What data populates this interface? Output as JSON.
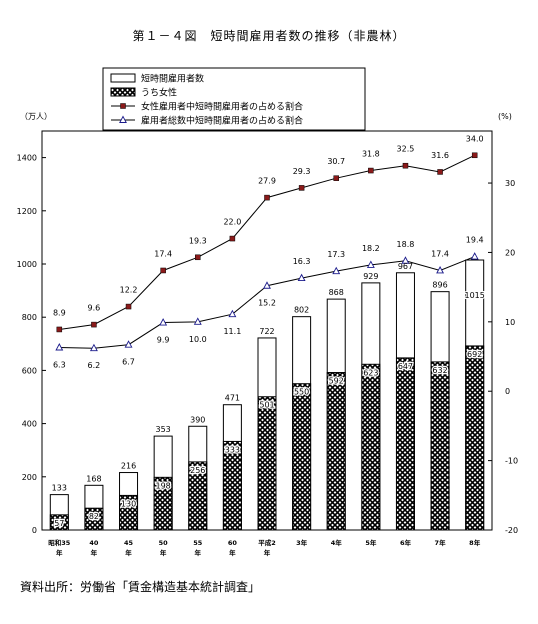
{
  "title": "第１－４図　短時間雇用者数の推移（非農林）",
  "source": "資料出所：労働省「賃金構造基本統計調査」",
  "chart_data": {
    "type": "bar",
    "categories": [
      "昭和35年",
      "40年",
      "45年",
      "50年",
      "55年",
      "60年",
      "平成2年",
      "3年",
      "4年",
      "5年",
      "6年",
      "7年",
      "8年"
    ],
    "left_axis": {
      "unit": "（万人）",
      "ylim": [
        0,
        1500
      ],
      "ticks": [
        0,
        200,
        400,
        600,
        800,
        1000,
        1200,
        1400
      ]
    },
    "right_axis": {
      "unit": "(%)",
      "ylim": [
        -20,
        37.5
      ],
      "ticks": [
        -20,
        -10,
        0,
        10,
        20,
        30
      ]
    },
    "series": [
      {
        "name": "短時間雇用者数",
        "kind": "bar",
        "axis": "left",
        "color": "#ffffff",
        "values": [
          133,
          168,
          216,
          353,
          390,
          471,
          722,
          802,
          868,
          929,
          967,
          896,
          1015
        ]
      },
      {
        "name": "うち女性",
        "kind": "bar",
        "axis": "left",
        "pattern": "crosshatch",
        "values": [
          57,
          82,
          130,
          198,
          256,
          333,
          501,
          550,
          592,
          623,
          647,
          632,
          692
        ]
      },
      {
        "name": "女性雇用者中短時間雇用者の占める割合",
        "kind": "line",
        "axis": "right",
        "marker": "square",
        "color": "#8b1a1a",
        "values": [
          8.9,
          9.6,
          12.2,
          17.4,
          19.3,
          22.0,
          27.9,
          29.3,
          30.7,
          31.8,
          32.5,
          31.6,
          34.0
        ]
      },
      {
        "name": "雇用者総数中短時間雇用者の占める割合",
        "kind": "line",
        "axis": "right",
        "marker": "triangle",
        "color": "#1a1a8b",
        "values": [
          6.3,
          6.2,
          6.7,
          9.9,
          10.0,
          11.1,
          15.2,
          16.3,
          17.3,
          18.2,
          18.8,
          17.4,
          19.4
        ]
      }
    ],
    "grid": false,
    "legend": "top-center"
  }
}
